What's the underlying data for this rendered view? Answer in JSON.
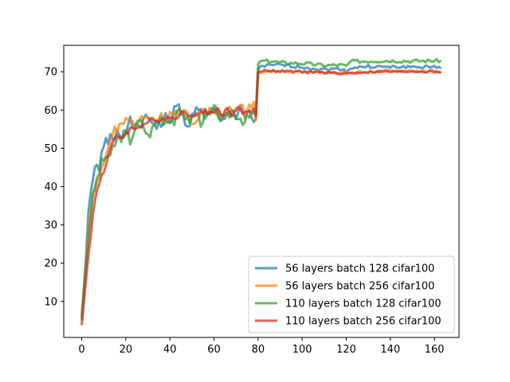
{
  "chart_data": {
    "type": "line",
    "title": "",
    "xlabel": "",
    "ylabel": "",
    "xlim": [
      -8.15,
      171.15
    ],
    "ylim": [
      0.6,
      76.9
    ],
    "xticks": [
      0,
      20,
      40,
      60,
      80,
      100,
      120,
      140,
      160
    ],
    "yticks": [
      10,
      20,
      30,
      40,
      50,
      60,
      70
    ],
    "grid": false,
    "legend_position": "lower-right",
    "series": [
      {
        "name": "56 layers batch 128 cifar100",
        "color": "#1f77b4",
        "anchors": [
          [
            0,
            6
          ],
          [
            1,
            14
          ],
          [
            2,
            22
          ],
          [
            3,
            33
          ],
          [
            4,
            38
          ],
          [
            5,
            42
          ],
          [
            6,
            44
          ],
          [
            7,
            45
          ],
          [
            8,
            45
          ],
          [
            9,
            48
          ],
          [
            10,
            50
          ],
          [
            11,
            52
          ],
          [
            12,
            51
          ],
          [
            13,
            53
          ],
          [
            14,
            52
          ],
          [
            15,
            53
          ],
          [
            16,
            55
          ],
          [
            18,
            53
          ],
          [
            20,
            55
          ],
          [
            22,
            57
          ],
          [
            24,
            55
          ],
          [
            26,
            56
          ],
          [
            28,
            57
          ],
          [
            30,
            58
          ],
          [
            32,
            57
          ],
          [
            34,
            56
          ],
          [
            36,
            56
          ],
          [
            38,
            58
          ],
          [
            40,
            57
          ],
          [
            42,
            60
          ],
          [
            44,
            61
          ],
          [
            46,
            58
          ],
          [
            48,
            56
          ],
          [
            50,
            58
          ],
          [
            52,
            60
          ],
          [
            54,
            61
          ],
          [
            56,
            57
          ],
          [
            58,
            59
          ],
          [
            60,
            60
          ],
          [
            62,
            58
          ],
          [
            64,
            57
          ],
          [
            66,
            60
          ],
          [
            68,
            59
          ],
          [
            70,
            58
          ],
          [
            72,
            60
          ],
          [
            74,
            58
          ],
          [
            76,
            59
          ],
          [
            78,
            57
          ],
          [
            79,
            58
          ],
          [
            80,
            70
          ],
          [
            81,
            71.6
          ],
          [
            82,
            71.5
          ],
          [
            90,
            71.8
          ],
          [
            100,
            71.2
          ],
          [
            110,
            70.6
          ],
          [
            118,
            70.8
          ],
          [
            120,
            70
          ],
          [
            122,
            71
          ],
          [
            130,
            71.4
          ],
          [
            140,
            71.2
          ],
          [
            150,
            71.3
          ],
          [
            160,
            71.2
          ],
          [
            163,
            71.2
          ]
        ],
        "noise": 0.8,
        "seed": 1
      },
      {
        "name": "56 layers batch 256 cifar100",
        "color": "#ff7f0e",
        "anchors": [
          [
            0,
            7
          ],
          [
            1,
            13
          ],
          [
            2,
            20
          ],
          [
            3,
            28
          ],
          [
            4,
            34
          ],
          [
            5,
            38
          ],
          [
            6,
            40
          ],
          [
            7,
            41
          ],
          [
            8,
            43
          ],
          [
            9,
            45
          ],
          [
            10,
            46
          ],
          [
            11,
            48
          ],
          [
            12,
            50
          ],
          [
            13,
            52
          ],
          [
            14,
            53
          ],
          [
            15,
            55
          ],
          [
            16,
            54
          ],
          [
            18,
            56
          ],
          [
            20,
            57
          ],
          [
            22,
            57
          ],
          [
            24,
            56
          ],
          [
            26,
            58
          ],
          [
            28,
            59
          ],
          [
            30,
            59
          ],
          [
            32,
            58
          ],
          [
            34,
            57
          ],
          [
            36,
            58
          ],
          [
            38,
            57
          ],
          [
            40,
            59
          ],
          [
            42,
            60
          ],
          [
            44,
            58
          ],
          [
            46,
            60
          ],
          [
            48,
            59
          ],
          [
            50,
            57
          ],
          [
            52,
            58
          ],
          [
            54,
            60
          ],
          [
            56,
            59
          ],
          [
            58,
            60
          ],
          [
            60,
            59
          ],
          [
            62,
            60
          ],
          [
            64,
            58
          ],
          [
            66,
            61
          ],
          [
            68,
            59
          ],
          [
            70,
            60
          ],
          [
            72,
            62
          ],
          [
            74,
            59
          ],
          [
            76,
            61
          ],
          [
            78,
            62
          ],
          [
            79,
            57
          ],
          [
            80,
            70
          ],
          [
            81,
            70.1
          ],
          [
            90,
            70.0
          ],
          [
            100,
            69.9
          ],
          [
            110,
            69.9
          ],
          [
            120,
            69.7
          ],
          [
            130,
            70.0
          ],
          [
            140,
            70.1
          ],
          [
            150,
            70.2
          ],
          [
            160,
            70.1
          ],
          [
            163,
            69.8
          ]
        ],
        "noise": 0.8,
        "seed": 2
      },
      {
        "name": "110 layers batch 128 cifar100",
        "color": "#2ca02c",
        "anchors": [
          [
            0,
            5
          ],
          [
            1,
            12
          ],
          [
            2,
            20
          ],
          [
            3,
            26
          ],
          [
            4,
            32
          ],
          [
            5,
            37
          ],
          [
            6,
            40
          ],
          [
            7,
            42
          ],
          [
            8,
            44
          ],
          [
            9,
            46
          ],
          [
            10,
            47
          ],
          [
            11,
            48
          ],
          [
            12,
            48
          ],
          [
            13,
            47
          ],
          [
            14,
            50
          ],
          [
            15,
            51
          ],
          [
            16,
            52
          ],
          [
            18,
            53
          ],
          [
            20,
            54
          ],
          [
            22,
            52
          ],
          [
            24,
            55
          ],
          [
            26,
            57
          ],
          [
            28,
            56
          ],
          [
            30,
            53
          ],
          [
            32,
            55
          ],
          [
            34,
            57
          ],
          [
            36,
            58
          ],
          [
            38,
            57
          ],
          [
            40,
            58
          ],
          [
            42,
            57
          ],
          [
            44,
            59
          ],
          [
            46,
            60
          ],
          [
            48,
            57
          ],
          [
            50,
            58
          ],
          [
            52,
            59
          ],
          [
            54,
            57
          ],
          [
            56,
            59
          ],
          [
            58,
            58
          ],
          [
            60,
            60
          ],
          [
            62,
            59
          ],
          [
            64,
            57
          ],
          [
            66,
            58
          ],
          [
            68,
            60
          ],
          [
            70,
            59
          ],
          [
            72,
            58
          ],
          [
            74,
            57
          ],
          [
            76,
            58
          ],
          [
            78,
            59
          ],
          [
            79,
            58
          ],
          [
            80,
            72.2
          ],
          [
            82,
            72.8
          ],
          [
            86,
            72.8
          ],
          [
            90,
            72.4
          ],
          [
            100,
            72.2
          ],
          [
            110,
            71.7
          ],
          [
            118,
            71.8
          ],
          [
            120,
            71.4
          ],
          [
            122,
            72.7
          ],
          [
            130,
            72.8
          ],
          [
            140,
            72.9
          ],
          [
            150,
            72.8
          ],
          [
            160,
            72.9
          ],
          [
            163,
            72.9
          ]
        ],
        "noise": 0.9,
        "seed": 3
      },
      {
        "name": "110 layers batch 256 cifar100",
        "color": "#d62728",
        "anchors": [
          [
            0,
            3.8
          ],
          [
            1,
            10
          ],
          [
            2,
            16
          ],
          [
            3,
            22
          ],
          [
            4,
            27
          ],
          [
            5,
            32
          ],
          [
            6,
            36
          ],
          [
            7,
            39
          ],
          [
            8,
            41
          ],
          [
            9,
            43
          ],
          [
            10,
            44
          ],
          [
            11,
            46
          ],
          [
            12,
            48
          ],
          [
            13,
            50
          ],
          [
            14,
            51
          ],
          [
            15,
            52
          ],
          [
            16,
            53
          ],
          [
            18,
            53
          ],
          [
            20,
            54
          ],
          [
            22,
            55
          ],
          [
            24,
            55
          ],
          [
            26,
            56
          ],
          [
            28,
            56
          ],
          [
            30,
            57
          ],
          [
            32,
            57
          ],
          [
            34,
            57
          ],
          [
            36,
            58
          ],
          [
            38,
            58
          ],
          [
            40,
            58
          ],
          [
            42,
            58
          ],
          [
            44,
            59
          ],
          [
            46,
            59
          ],
          [
            48,
            59
          ],
          [
            50,
            59
          ],
          [
            52,
            59
          ],
          [
            54,
            59
          ],
          [
            56,
            60
          ],
          [
            58,
            59
          ],
          [
            60,
            60
          ],
          [
            62,
            60
          ],
          [
            64,
            59
          ],
          [
            66,
            60
          ],
          [
            68,
            59
          ],
          [
            70,
            60
          ],
          [
            72,
            60
          ],
          [
            74,
            59
          ],
          [
            76,
            60
          ],
          [
            78,
            60
          ],
          [
            79,
            59
          ],
          [
            80,
            69.8
          ],
          [
            82,
            70.3
          ],
          [
            90,
            70.2
          ],
          [
            100,
            70.0
          ],
          [
            110,
            69.8
          ],
          [
            120,
            69.5
          ],
          [
            130,
            70.0
          ],
          [
            140,
            70.0
          ],
          [
            150,
            70.1
          ],
          [
            160,
            70.0
          ],
          [
            163,
            69.8
          ]
        ],
        "noise": 0.5,
        "seed": 4
      }
    ]
  }
}
